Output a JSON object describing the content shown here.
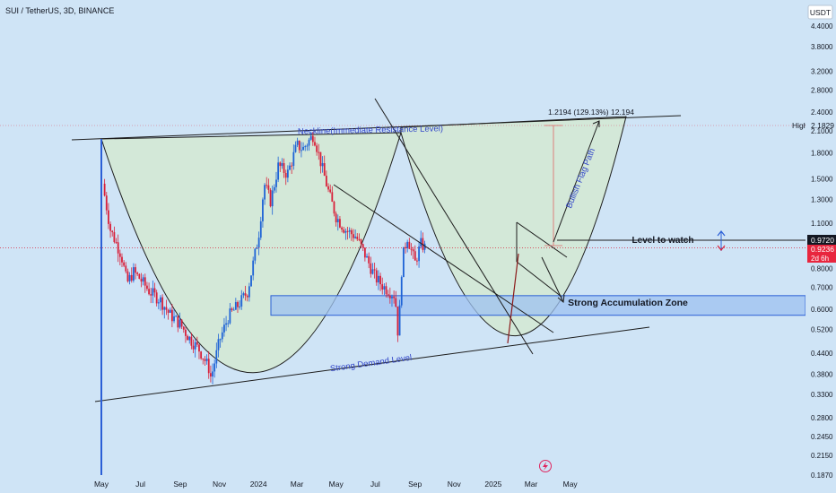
{
  "header": {
    "symbol_title": "SUI / TetherUS, 3D, BINANCE"
  },
  "currency": "USDT",
  "colors": {
    "background": "#cfe4f6",
    "up": "#1e63d6",
    "down": "#d8203a",
    "cup_fill": "#d3e8d8",
    "zone_fill": "#9ec2f0",
    "zone_border": "#2b5fd6",
    "annotation_text": "#3347c9",
    "price_tag_current": "#131722",
    "price_tag_last": "#e8263e",
    "target_line": "#e06666",
    "lightning": "#e0245e"
  },
  "annotations": {
    "neckline": "Neckline(Immediate Resistance Level)",
    "demand": "Strong Demand Level",
    "flag_path": "Bullish Flag Path",
    "level_watch": "Level to watch",
    "accumulation": "Strong Accumulation Zone",
    "projection": "1.2194 (129.13%) 12.194",
    "high_label": "High"
  },
  "price_tags": {
    "high": "2.1829",
    "watch": "0.9720",
    "last": "0.9236",
    "countdown": "2d 6h"
  },
  "chart_data": {
    "type": "line",
    "title": "SUI / TetherUS, 3D, BINANCE",
    "scale": "log",
    "ylim": [
      0.187,
      5.0
    ],
    "y_ticks": [
      "4.4000",
      "3.8000",
      "3.2000",
      "2.8000",
      "2.4000",
      "2.1000",
      "1.8000",
      "1.5000",
      "1.3000",
      "1.1000",
      "0.9720",
      "0.8000",
      "0.7000",
      "0.6000",
      "0.5200",
      "0.4400",
      "0.3800",
      "0.3300",
      "0.2800",
      "0.2450",
      "0.2150",
      "0.1870"
    ],
    "x_ticks": [
      "May",
      "Jul",
      "Sep",
      "Nov",
      "2024",
      "Mar",
      "May",
      "Jul",
      "Sep",
      "Nov",
      "2025",
      "Mar",
      "May"
    ],
    "series": [
      {
        "x": [
          "2023-05-03",
          "2023-05-15",
          "2023-06-01",
          "2023-06-10",
          "2023-06-20",
          "2023-07-01",
          "2023-07-15",
          "2023-08-01",
          "2023-08-15",
          "2023-09-01",
          "2023-09-15",
          "2023-10-01",
          "2023-10-15",
          "2023-10-19",
          "2023-11-01",
          "2023-11-15",
          "2023-12-01",
          "2023-12-15",
          "2024-01-01",
          "2024-01-10",
          "2024-01-20",
          "2024-02-01",
          "2024-02-15",
          "2024-03-01",
          "2024-03-10",
          "2024-03-27",
          "2024-04-10",
          "2024-04-20",
          "2024-05-01",
          "2024-05-15",
          "2024-06-01",
          "2024-06-15",
          "2024-07-01",
          "2024-07-15",
          "2024-08-01",
          "2024-08-06",
          "2024-08-12",
          "2024-08-20",
          "2024-09-01",
          "2024-09-10",
          "2024-09-18"
        ],
        "values": [
          1.45,
          1.05,
          0.88,
          0.72,
          0.78,
          0.74,
          0.68,
          0.64,
          0.58,
          0.54,
          0.49,
          0.45,
          0.4,
          0.37,
          0.48,
          0.57,
          0.62,
          0.68,
          1.0,
          1.45,
          1.28,
          1.65,
          1.55,
          1.9,
          1.85,
          2.05,
          1.6,
          1.35,
          1.15,
          1.05,
          1.0,
          0.88,
          0.75,
          0.7,
          0.66,
          0.49,
          0.85,
          1.0,
          0.83,
          0.95,
          0.92
        ]
      }
    ]
  }
}
